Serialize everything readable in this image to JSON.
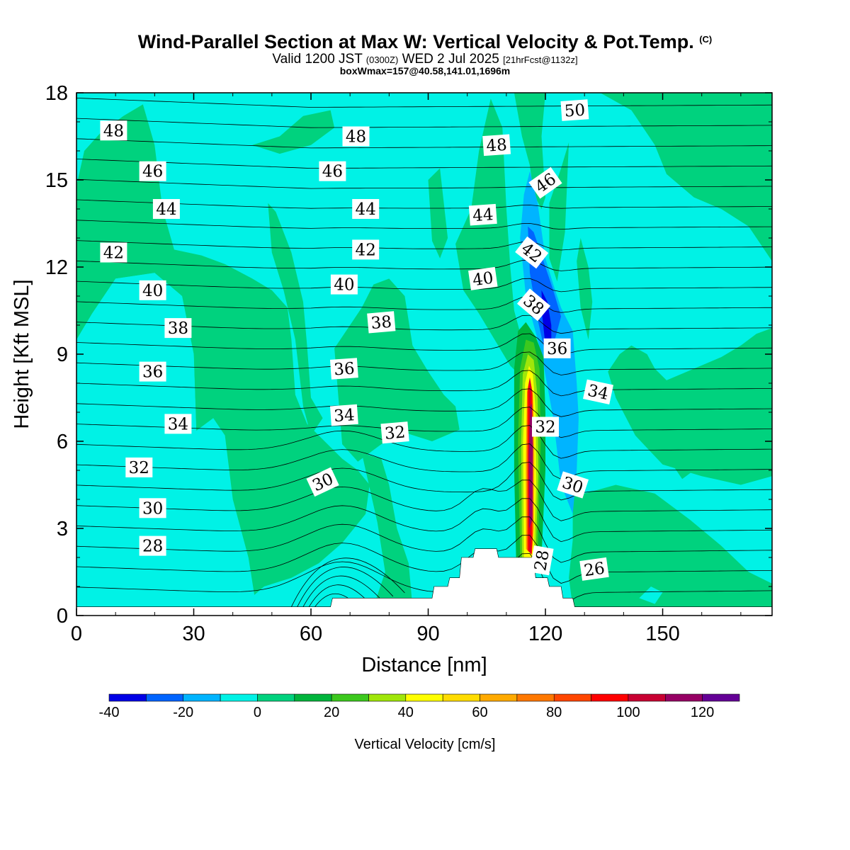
{
  "title": {
    "main": "Wind-Parallel Section at Max W: Vertical Velocity & Pot.Temp.",
    "copyright": "(C)",
    "valid_prefix": "Valid 1200 JST",
    "valid_utc": "(0300Z)",
    "valid_date": "WED 2 Jul 2025",
    "forecast": "[21hrFcst@1132z]",
    "boxwmax": "boxWmax=157@40.58,141.01,1696m"
  },
  "colors": {
    "neg_light": "#00b4ff",
    "neg_mid": "#0064ff",
    "neg_dark": "#0000e6",
    "zero": "#00f2e6",
    "pos_light": "#00d27e"
  },
  "chart_data": {
    "type": "contour",
    "xlabel": "Distance [nm]",
    "ylabel": "Height [Kft MSL]",
    "xlim": [
      0,
      178
    ],
    "ylim": [
      0,
      18
    ],
    "x_ticks": [
      "0",
      "30",
      "60",
      "90",
      "120",
      "150"
    ],
    "x_tick_values": [
      0,
      30,
      60,
      90,
      120,
      150
    ],
    "y_ticks": [
      "0",
      "3",
      "6",
      "9",
      "12",
      "15",
      "18"
    ],
    "y_tick_values": [
      0,
      3,
      6,
      9,
      12,
      15,
      18
    ],
    "filled_field": "Vertical Velocity",
    "colorbar": {
      "label": "Vertical Velocity [cm/s]",
      "levels": [
        -40,
        -30,
        -20,
        -10,
        0,
        10,
        20,
        30,
        40,
        50,
        60,
        70,
        80,
        90,
        100,
        110,
        120,
        130
      ],
      "tick_labels": [
        "-40",
        "-20",
        "0",
        "20",
        "40",
        "60",
        "80",
        "100",
        "120"
      ],
      "tick_values": [
        -40,
        -20,
        0,
        20,
        40,
        60,
        80,
        100,
        120
      ],
      "colors": [
        "#0000e6",
        "#0064ff",
        "#00b4ff",
        "#00f2e6",
        "#00d27e",
        "#00b43c",
        "#3cc81e",
        "#a0e60a",
        "#ffff00",
        "#ffdc00",
        "#ffaa00",
        "#ff7800",
        "#ff4600",
        "#ff0000",
        "#c80032",
        "#960064",
        "#640096"
      ]
    },
    "max_updraft": {
      "x": 116.5,
      "z_kft": 5.5,
      "w_cms": 157
    },
    "terrain_profile": [
      [
        0,
        0.3
      ],
      [
        65,
        0.3
      ],
      [
        65.5,
        0.6
      ],
      [
        91,
        0.6
      ],
      [
        91.5,
        1.0
      ],
      [
        95,
        1.0
      ],
      [
        95.5,
        1.3
      ],
      [
        98,
        1.3
      ],
      [
        98.5,
        2.0
      ],
      [
        101.5,
        2.0
      ],
      [
        102,
        2.3
      ],
      [
        107.5,
        2.3
      ],
      [
        108,
        2.0
      ],
      [
        116,
        2.0
      ],
      [
        117,
        2.0
      ],
      [
        117.5,
        1.3
      ],
      [
        120.5,
        1.3
      ],
      [
        121,
        1.0
      ],
      [
        124,
        1.0
      ],
      [
        124.5,
        0.6
      ],
      [
        127,
        0.6
      ],
      [
        127.5,
        0.3
      ],
      [
        178,
        0.3
      ]
    ],
    "theta_contour_labels": [
      {
        "text": "48",
        "x": 9.5,
        "z": 16.7,
        "angle": 0
      },
      {
        "text": "48",
        "x": 71.5,
        "z": 16.5,
        "angle": 0
      },
      {
        "text": "48",
        "x": 107.5,
        "z": 16.2,
        "angle": -4
      },
      {
        "text": "50",
        "x": 127.5,
        "z": 17.4,
        "angle": -4
      },
      {
        "text": "46",
        "x": 19.5,
        "z": 15.3,
        "angle": 0
      },
      {
        "text": "46",
        "x": 65.5,
        "z": 15.3,
        "angle": 0
      },
      {
        "text": "46",
        "x": 120,
        "z": 14.9,
        "angle": -35
      },
      {
        "text": "44",
        "x": 23,
        "z": 14.0,
        "angle": 0
      },
      {
        "text": "44",
        "x": 74,
        "z": 14.0,
        "angle": 0
      },
      {
        "text": "44",
        "x": 104,
        "z": 13.8,
        "angle": -4
      },
      {
        "text": "42",
        "x": 9.5,
        "z": 12.5,
        "angle": 0
      },
      {
        "text": "42",
        "x": 74,
        "z": 12.6,
        "angle": 0
      },
      {
        "text": "42",
        "x": 116.5,
        "z": 12.5,
        "angle": 38
      },
      {
        "text": "40",
        "x": 19.5,
        "z": 11.2,
        "angle": 0
      },
      {
        "text": "40",
        "x": 68.5,
        "z": 11.4,
        "angle": 0
      },
      {
        "text": "40",
        "x": 104,
        "z": 11.6,
        "angle": -8
      },
      {
        "text": "38",
        "x": 26,
        "z": 9.9,
        "angle": 0
      },
      {
        "text": "38",
        "x": 78,
        "z": 10.1,
        "angle": -5
      },
      {
        "text": "38",
        "x": 117,
        "z": 10.7,
        "angle": 40
      },
      {
        "text": "36",
        "x": 19.5,
        "z": 8.4,
        "angle": 0
      },
      {
        "text": "36",
        "x": 68.5,
        "z": 8.5,
        "angle": -4
      },
      {
        "text": "36",
        "x": 123,
        "z": 9.2,
        "angle": 0
      },
      {
        "text": "34",
        "x": 26,
        "z": 6.6,
        "angle": 0
      },
      {
        "text": "34",
        "x": 68.5,
        "z": 6.9,
        "angle": -4
      },
      {
        "text": "34",
        "x": 133.5,
        "z": 7.7,
        "angle": 12
      },
      {
        "text": "32",
        "x": 16,
        "z": 5.1,
        "angle": 0
      },
      {
        "text": "32",
        "x": 81.5,
        "z": 6.3,
        "angle": -5
      },
      {
        "text": "32",
        "x": 120,
        "z": 6.5,
        "angle": 0
      },
      {
        "text": "30",
        "x": 19.5,
        "z": 3.7,
        "angle": 0
      },
      {
        "text": "30",
        "x": 63,
        "z": 4.6,
        "angle": -25
      },
      {
        "text": "30",
        "x": 127,
        "z": 4.5,
        "angle": 18
      },
      {
        "text": "28",
        "x": 19.5,
        "z": 2.4,
        "angle": 0
      },
      {
        "text": "28",
        "x": 119,
        "z": 1.9,
        "angle": -80
      },
      {
        "text": "26",
        "x": 132.5,
        "z": 1.6,
        "angle": -8
      }
    ]
  }
}
